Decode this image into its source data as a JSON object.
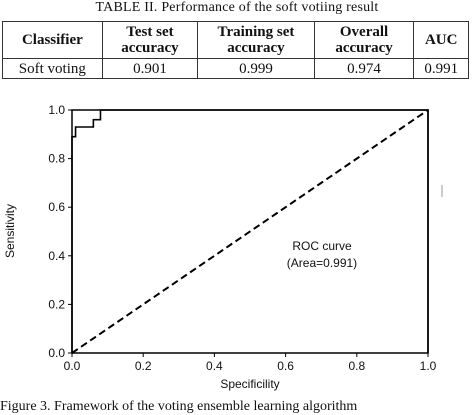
{
  "table": {
    "caption": "TABLE II. Performance of the soft votiing result",
    "headers": [
      "Classifier",
      "Test set accuracy",
      "Training set accuracy",
      "Overall accuracy",
      "AUC"
    ],
    "rows": [
      [
        "Soft voting",
        "0.901",
        "0.999",
        "0.974",
        "0.991"
      ]
    ]
  },
  "chart_data": {
    "type": "line",
    "xlabel": "Specificility",
    "ylabel": "Sensitivity",
    "xlim": [
      0,
      1
    ],
    "ylim": [
      0,
      1
    ],
    "xticks": [
      "0.0",
      "0.2",
      "0.4",
      "0.6",
      "0.8",
      "1.0"
    ],
    "yticks": [
      "0.0",
      "0.2",
      "0.4",
      "0.6",
      "0.8",
      "1.0"
    ],
    "grid": false,
    "series": [
      {
        "style": "solid",
        "color": "#000000",
        "x": [
          0.0,
          0.0,
          0.01,
          0.01,
          0.06,
          0.06,
          0.08,
          0.08,
          1.0,
          1.0
        ],
        "y": [
          0.0,
          0.89,
          0.89,
          0.93,
          0.93,
          0.96,
          0.96,
          1.0,
          1.0,
          0.0
        ]
      },
      {
        "style": "dashed",
        "color": "#000000",
        "x": [
          0.0,
          1.0
        ],
        "y": [
          0.0,
          1.0
        ]
      }
    ],
    "annotations": [
      "ROC curve",
      "(Area=0.991)"
    ]
  },
  "figure_caption": "Figure 3. Framework of the voting ensemble learning algorithm"
}
